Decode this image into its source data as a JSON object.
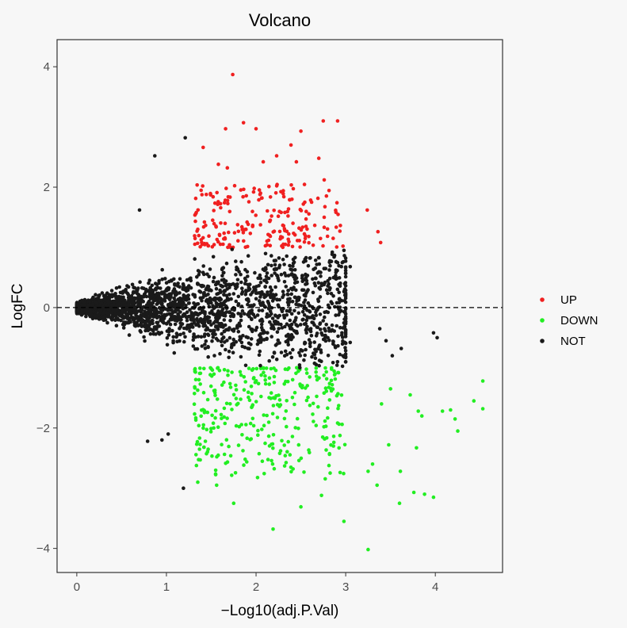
{
  "chart_data": {
    "type": "scatter",
    "title": "Volcano",
    "xlabel": "−Log10(adj.P.Val)",
    "ylabel": "LogFC",
    "xlim": [
      -0.22,
      4.75
    ],
    "ylim": [
      -4.4,
      4.45
    ],
    "x_ticks": [
      {
        "value": 0,
        "label": "0"
      },
      {
        "value": 1,
        "label": "1"
      },
      {
        "value": 2,
        "label": "2"
      },
      {
        "value": 3,
        "label": "3"
      },
      {
        "value": 4,
        "label": "4"
      }
    ],
    "y_ticks": [
      {
        "value": 4,
        "label": "4"
      },
      {
        "value": 2,
        "label": "2"
      },
      {
        "value": 0,
        "label": "0"
      },
      {
        "value": -2,
        "label": "−2"
      },
      {
        "value": -4,
        "label": "−4"
      }
    ],
    "reference_line": {
      "y": 0,
      "style": "dashed"
    },
    "grid": false,
    "legend": {
      "position": "right",
      "entries": [
        {
          "label": "UP",
          "color": "#f02020"
        },
        {
          "label": "DOWN",
          "color": "#22ee22"
        },
        {
          "label": "NOT",
          "color": "#1a1a1a"
        }
      ]
    },
    "series": [
      {
        "name": "UP",
        "color": "#f02020",
        "points": [
          [
            1.74,
            3.87
          ],
          [
            1.86,
            3.07
          ],
          [
            2.0,
            2.97
          ],
          [
            1.66,
            2.97
          ],
          [
            2.75,
            3.1
          ],
          [
            2.91,
            3.1
          ],
          [
            2.5,
            2.93
          ],
          [
            1.41,
            2.66
          ],
          [
            2.39,
            2.7
          ],
          [
            2.23,
            2.52
          ],
          [
            1.58,
            2.38
          ],
          [
            1.68,
            2.32
          ],
          [
            2.08,
            2.42
          ],
          [
            2.45,
            2.42
          ],
          [
            2.7,
            2.48
          ],
          [
            3.24,
            1.62
          ],
          [
            3.36,
            1.26
          ],
          [
            3.39,
            1.08
          ],
          [
            2.28,
            1.58
          ],
          [
            2.05,
            1.9
          ],
          [
            1.52,
            1.84
          ],
          [
            2.76,
            2.12
          ],
          [
            2.62,
            1.75
          ],
          [
            1.35,
            1.3
          ],
          [
            1.9,
            1.42
          ],
          [
            2.97,
            1.02
          ],
          [
            2.86,
            1.15
          ],
          [
            2.48,
            1.32
          ],
          [
            1.45,
            1.06
          ],
          [
            2.15,
            1.2
          ]
        ],
        "cloud": {
          "count": 200,
          "x_range": [
            1.31,
            2.95
          ],
          "y_range": [
            1.0,
            2.05
          ]
        }
      },
      {
        "name": "DOWN",
        "color": "#22ee22",
        "points": [
          [
            3.25,
            -4.02
          ],
          [
            2.19,
            -3.68
          ],
          [
            2.98,
            -3.55
          ],
          [
            2.5,
            -3.31
          ],
          [
            3.6,
            -3.25
          ],
          [
            3.98,
            -3.15
          ],
          [
            3.76,
            -3.07
          ],
          [
            1.75,
            -3.25
          ],
          [
            3.88,
            -3.1
          ],
          [
            4.22,
            -1.85
          ],
          [
            4.53,
            -1.22
          ],
          [
            4.53,
            -1.68
          ],
          [
            4.43,
            -1.55
          ],
          [
            4.25,
            -2.05
          ],
          [
            4.17,
            -1.7
          ],
          [
            3.72,
            -1.45
          ],
          [
            3.85,
            -1.8
          ],
          [
            4.08,
            -1.72
          ],
          [
            3.48,
            -2.28
          ],
          [
            3.3,
            -2.6
          ],
          [
            3.35,
            -2.95
          ],
          [
            3.81,
            -1.72
          ],
          [
            3.61,
            -2.72
          ],
          [
            2.73,
            -3.12
          ],
          [
            1.35,
            -2.9
          ],
          [
            1.56,
            -2.95
          ],
          [
            3.25,
            -2.72
          ],
          [
            3.79,
            -2.33
          ],
          [
            3.5,
            -1.35
          ],
          [
            3.4,
            -1.6
          ]
        ],
        "cloud": {
          "count": 320,
          "x_range": [
            1.31,
            3.0
          ],
          "y_range": [
            -2.85,
            -1.0
          ]
        }
      },
      {
        "name": "NOT",
        "color": "#1a1a1a",
        "points": [
          [
            1.21,
            2.82
          ],
          [
            0.87,
            2.52
          ],
          [
            1.19,
            -3.0
          ],
          [
            0.79,
            -2.22
          ],
          [
            0.95,
            -2.2
          ],
          [
            1.02,
            -2.1
          ],
          [
            0.7,
            1.62
          ],
          [
            3.38,
            -0.35
          ],
          [
            3.45,
            -0.55
          ],
          [
            3.62,
            -0.68
          ],
          [
            3.98,
            -0.42
          ],
          [
            4.02,
            -0.5
          ],
          [
            3.52,
            -0.8
          ],
          [
            3.05,
            -0.58
          ],
          [
            2.98,
            0.95
          ],
          [
            3.05,
            0.68
          ],
          [
            2.85,
            0.92
          ],
          [
            2.72,
            0.52
          ],
          [
            3.0,
            -0.9
          ]
        ],
        "cloud": {
          "count": 2400
        }
      }
    ]
  }
}
